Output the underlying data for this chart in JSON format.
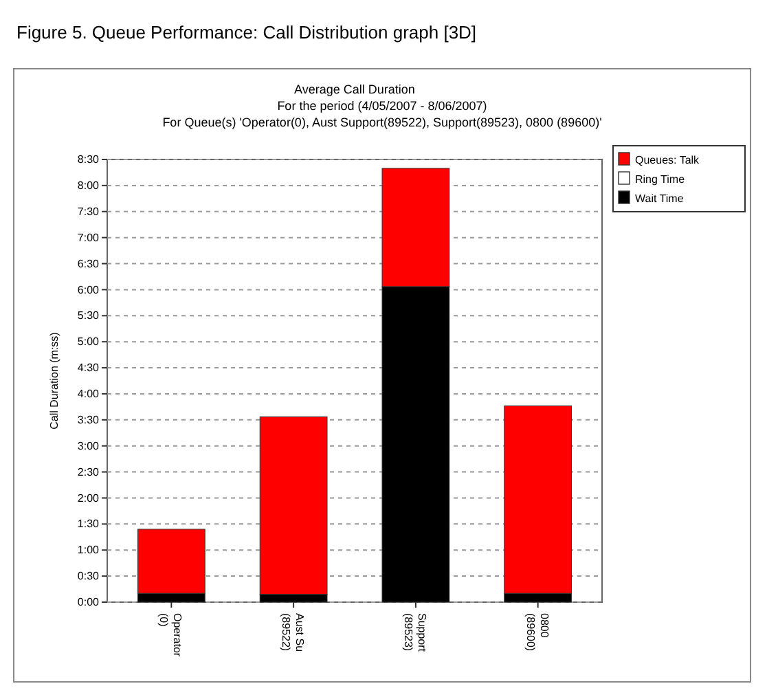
{
  "chart_data": {
    "type": "bar",
    "title": "Average Call Duration",
    "subtitle": "For the period (4/05/2007 - 8/06/2007)\nFor Queue(s) 'Operator(0), Aust Support(89522), Support(89523), 0800 (89600)'",
    "annotations": [
      "Figure 5.    Queue Performance: Call Distribution graph [3D]"
    ],
    "ylabel": "Call Duration (m:ss)",
    "categories": [
      "Operator\n(0)",
      "Aust Su\n(89522)",
      "Support\n(89523)",
      "0800\n(89600)"
    ],
    "stacked": true,
    "series": [
      {
        "name": "Wait Time",
        "color": "#000000",
        "values": [
          0.17,
          0.15,
          6.06,
          0.17
        ]
      },
      {
        "name": "Ring Time",
        "color": "#ffffff",
        "values": [
          0,
          0,
          0,
          0
        ]
      },
      {
        "name": "Queues: Talk",
        "color": "#ff0000",
        "values": [
          1.23,
          3.41,
          2.27,
          3.6
        ]
      }
    ],
    "ylim": [
      0,
      8.5
    ],
    "yticks": [
      {
        "value": 0,
        "label": "0:00"
      },
      {
        "value": 0.5,
        "label": "0:30"
      },
      {
        "value": 1,
        "label": "1:00"
      },
      {
        "value": 1.5,
        "label": "1:30"
      },
      {
        "value": 2,
        "label": "2:00"
      },
      {
        "value": 2.5,
        "label": "2:30"
      },
      {
        "value": 3,
        "label": "3:00"
      },
      {
        "value": 3.5,
        "label": "3:30"
      },
      {
        "value": 4,
        "label": "4:00"
      },
      {
        "value": 4.5,
        "label": "4:30"
      },
      {
        "value": 5,
        "label": "5:00"
      },
      {
        "value": 5.5,
        "label": "5:30"
      },
      {
        "value": 6,
        "label": "6:00"
      },
      {
        "value": 6.5,
        "label": "6:30"
      },
      {
        "value": 7,
        "label": "7:00"
      },
      {
        "value": 7.5,
        "label": "7:30"
      },
      {
        "value": 8,
        "label": "8:00"
      },
      {
        "value": 8.5,
        "label": "8:30"
      }
    ],
    "grid": "y",
    "line_style": "dashed",
    "legend": "top right"
  }
}
